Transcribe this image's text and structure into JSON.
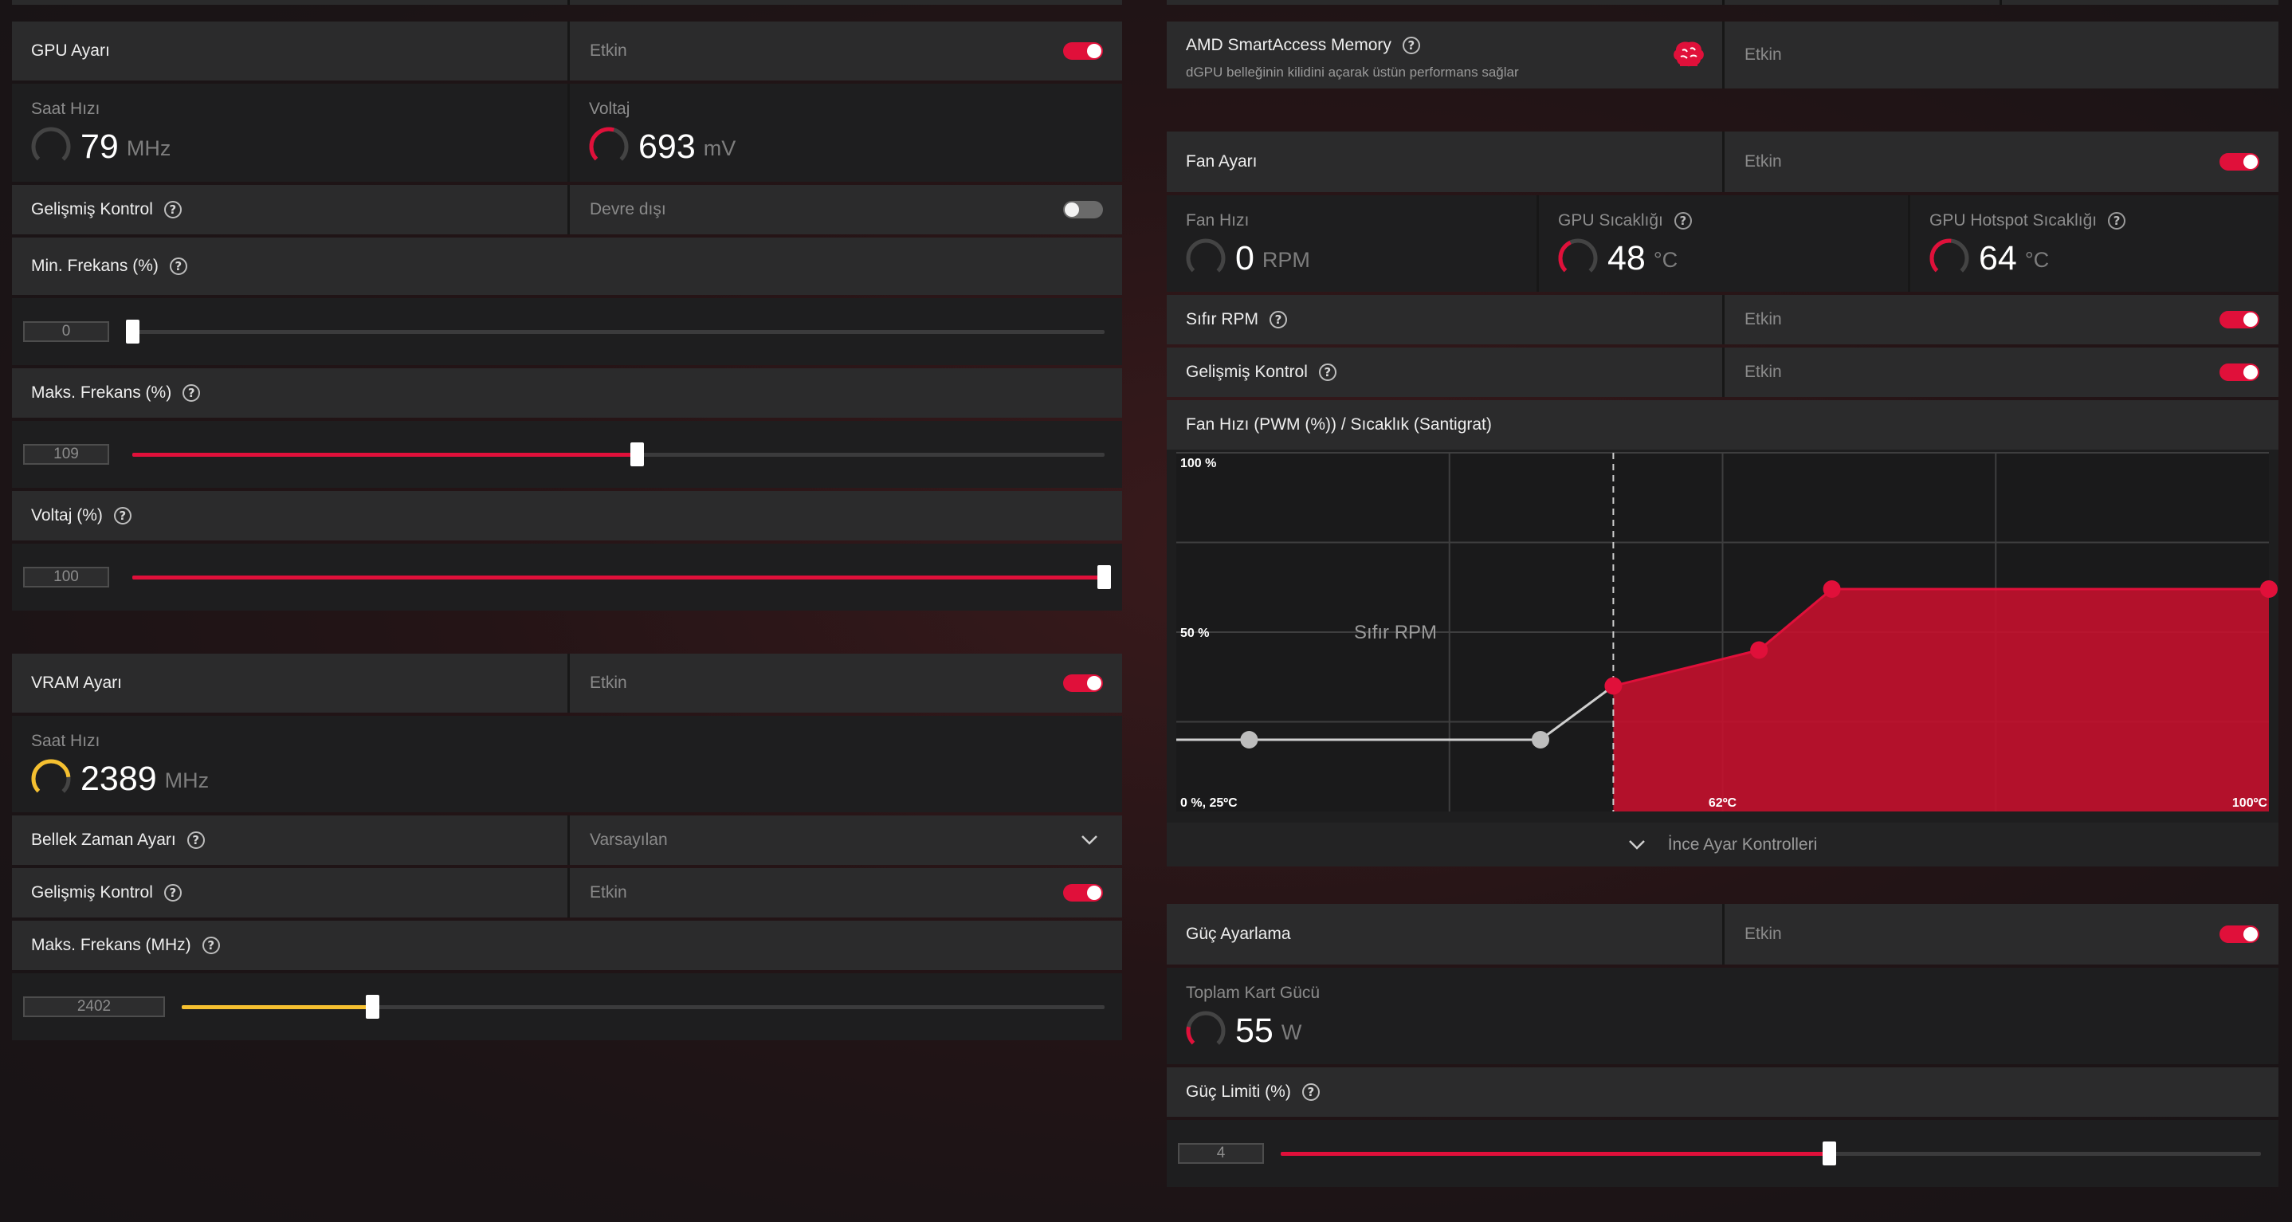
{
  "gpu": {
    "title": "GPU Ayarı",
    "status": "Etkin",
    "clock": {
      "label": "Saat Hızı",
      "value": "79",
      "unit": "MHz"
    },
    "voltage": {
      "label": "Voltaj",
      "value": "693",
      "unit": "mV"
    },
    "advanced": {
      "label": "Gelişmiş Kontrol",
      "status": "Devre dışı"
    },
    "min_freq": {
      "label": "Min. Frekans (%)",
      "value": "0",
      "level_percent": 0
    },
    "max_freq": {
      "label": "Maks. Frekans (%)",
      "value": "109",
      "level_percent": 52
    },
    "voltage_pct": {
      "label": "Voltaj (%)",
      "value": "100",
      "level_percent": 100
    }
  },
  "vram": {
    "title": "VRAM Ayarı",
    "status": "Etkin",
    "clock": {
      "label": "Saat Hızı",
      "value": "2389",
      "unit": "MHz"
    },
    "timing": {
      "label": "Bellek Zaman Ayarı",
      "value": "Varsayılan"
    },
    "advanced": {
      "label": "Gelişmiş Kontrol",
      "status": "Etkin"
    },
    "max_freq": {
      "label": "Maks. Frekans (MHz)",
      "value": "2402",
      "level_percent": 21
    }
  },
  "sam": {
    "title": "AMD SmartAccess Memory",
    "subtitle": "dGPU belleğinin kilidini açarak üstün performans sağlar",
    "status": "Etkin"
  },
  "fan": {
    "title": "Fan Ayarı",
    "status": "Etkin",
    "speed": {
      "label": "Fan Hızı",
      "value": "0",
      "unit": "RPM"
    },
    "gpu_temp": {
      "label": "GPU Sıcaklığı",
      "value": "48",
      "unit": "°C"
    },
    "hotspot": {
      "label": "GPU Hotspot Sıcaklığı",
      "value": "64",
      "unit": "°C"
    },
    "zero_rpm": {
      "label": "Sıfır RPM",
      "status": "Etkin"
    },
    "advanced": {
      "label": "Gelişmiş Kontrol",
      "status": "Etkin"
    },
    "curve_title": "Fan Hızı (PWM (%)) / Sıcaklık (Santigrat)",
    "fine_tune": "İnce Ayar Kontrolleri"
  },
  "power": {
    "title": "Güç Ayarlama",
    "status": "Etkin",
    "total": {
      "label": "Toplam Kart Gücü",
      "value": "55",
      "unit": "W"
    },
    "limit": {
      "label": "Güç Limiti (%)",
      "value": "4",
      "level_percent": 56
    }
  },
  "colors": {
    "accent": "#e0103a",
    "vram_accent": "#f5c030",
    "panel": "#2b2b2c",
    "panel_dark": "#1e1e1f"
  },
  "chart_data": {
    "type": "area",
    "title": "Fan Hızı (PWM (%)) / Sıcaklık (Santigrat)",
    "y_tick_labels": [
      "100 %",
      "50 %",
      "0 %, 25ºC"
    ],
    "x_tick_labels": [
      "0 %, 25ºC",
      "62ºC",
      "100ºC"
    ],
    "annotation": "Sıfır RPM",
    "xlim": [
      25,
      100
    ],
    "ylim": [
      0,
      100
    ],
    "series": [
      {
        "x": [
          30,
          50,
          55,
          65,
          70,
          100
        ],
        "values": [
          20,
          20,
          35,
          45,
          62,
          62
        ]
      }
    ],
    "zero_rpm_until": 55,
    "grid": true
  }
}
